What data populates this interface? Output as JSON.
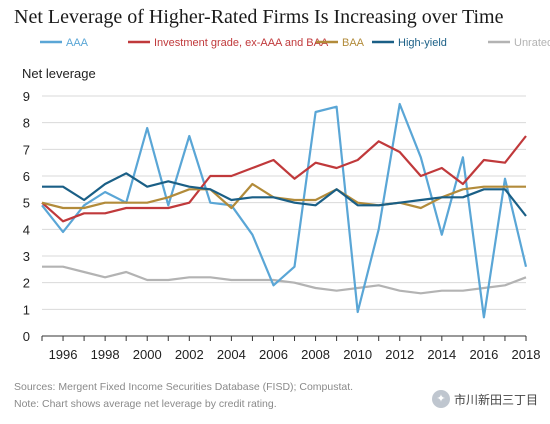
{
  "chart_data": {
    "type": "line",
    "title": "Net Leverage of Higher-Rated Firms Is Increasing over Time",
    "ylabel": "Net leverage",
    "xlabel": "",
    "ylim": [
      0,
      9
    ],
    "yticks": [
      0,
      1,
      2,
      3,
      4,
      5,
      6,
      7,
      8,
      9
    ],
    "xlim": [
      1995,
      2018
    ],
    "xticks": [
      1996,
      1998,
      2000,
      2002,
      2004,
      2006,
      2008,
      2010,
      2012,
      2014,
      2016,
      2018
    ],
    "grid": true,
    "legend_position": "top",
    "x": [
      1995,
      1996,
      1997,
      1998,
      1999,
      2000,
      2001,
      2002,
      2003,
      2004,
      2005,
      2006,
      2007,
      2008,
      2009,
      2010,
      2011,
      2012,
      2013,
      2014,
      2015,
      2016,
      2017,
      2018
    ],
    "series": [
      {
        "name": "AAA",
        "color": "#5aa6d6",
        "values": [
          4.9,
          3.9,
          4.9,
          5.4,
          5.0,
          7.8,
          4.9,
          7.5,
          5.0,
          4.9,
          3.8,
          1.9,
          2.6,
          8.4,
          8.6,
          0.9,
          4.0,
          8.7,
          6.7,
          3.8,
          6.7,
          0.7,
          5.9,
          2.6
        ]
      },
      {
        "name": "Investment grade, ex-AAA and BAA",
        "color": "#c0393b",
        "values": [
          5.0,
          4.3,
          4.6,
          4.6,
          4.8,
          4.8,
          4.8,
          5.0,
          6.0,
          6.0,
          6.3,
          6.6,
          5.9,
          6.5,
          6.3,
          6.6,
          7.3,
          6.9,
          6.0,
          6.3,
          5.7,
          6.6,
          6.5,
          7.5
        ]
      },
      {
        "name": "BAA",
        "color": "#b28b3a",
        "values": [
          5.0,
          4.8,
          4.8,
          5.0,
          5.0,
          5.0,
          5.2,
          5.5,
          5.5,
          4.8,
          5.7,
          5.2,
          5.1,
          5.1,
          5.5,
          5.0,
          4.9,
          5.0,
          4.8,
          5.2,
          5.5,
          5.6,
          5.6,
          5.6
        ]
      },
      {
        "name": "High-yield",
        "color": "#1a5f86",
        "values": [
          5.6,
          5.6,
          5.1,
          5.7,
          6.1,
          5.6,
          5.8,
          5.6,
          5.5,
          5.1,
          5.2,
          5.2,
          5.0,
          4.9,
          5.5,
          4.9,
          4.9,
          5.0,
          5.1,
          5.2,
          5.2,
          5.5,
          5.5,
          4.5
        ]
      },
      {
        "name": "Unrated",
        "color": "#b3b3b3",
        "values": [
          2.6,
          2.6,
          2.4,
          2.2,
          2.4,
          2.1,
          2.1,
          2.2,
          2.2,
          2.1,
          2.1,
          2.1,
          2.0,
          1.8,
          1.7,
          1.8,
          1.9,
          1.7,
          1.6,
          1.7,
          1.7,
          1.8,
          1.9,
          2.2
        ]
      }
    ],
    "notes": [
      "Sources: Mergent Fixed Income Securities Database (FISD); Compustat.",
      "Note: Chart shows average net leverage by credit rating."
    ]
  },
  "watermark": {
    "text": "市川新田三丁目"
  }
}
